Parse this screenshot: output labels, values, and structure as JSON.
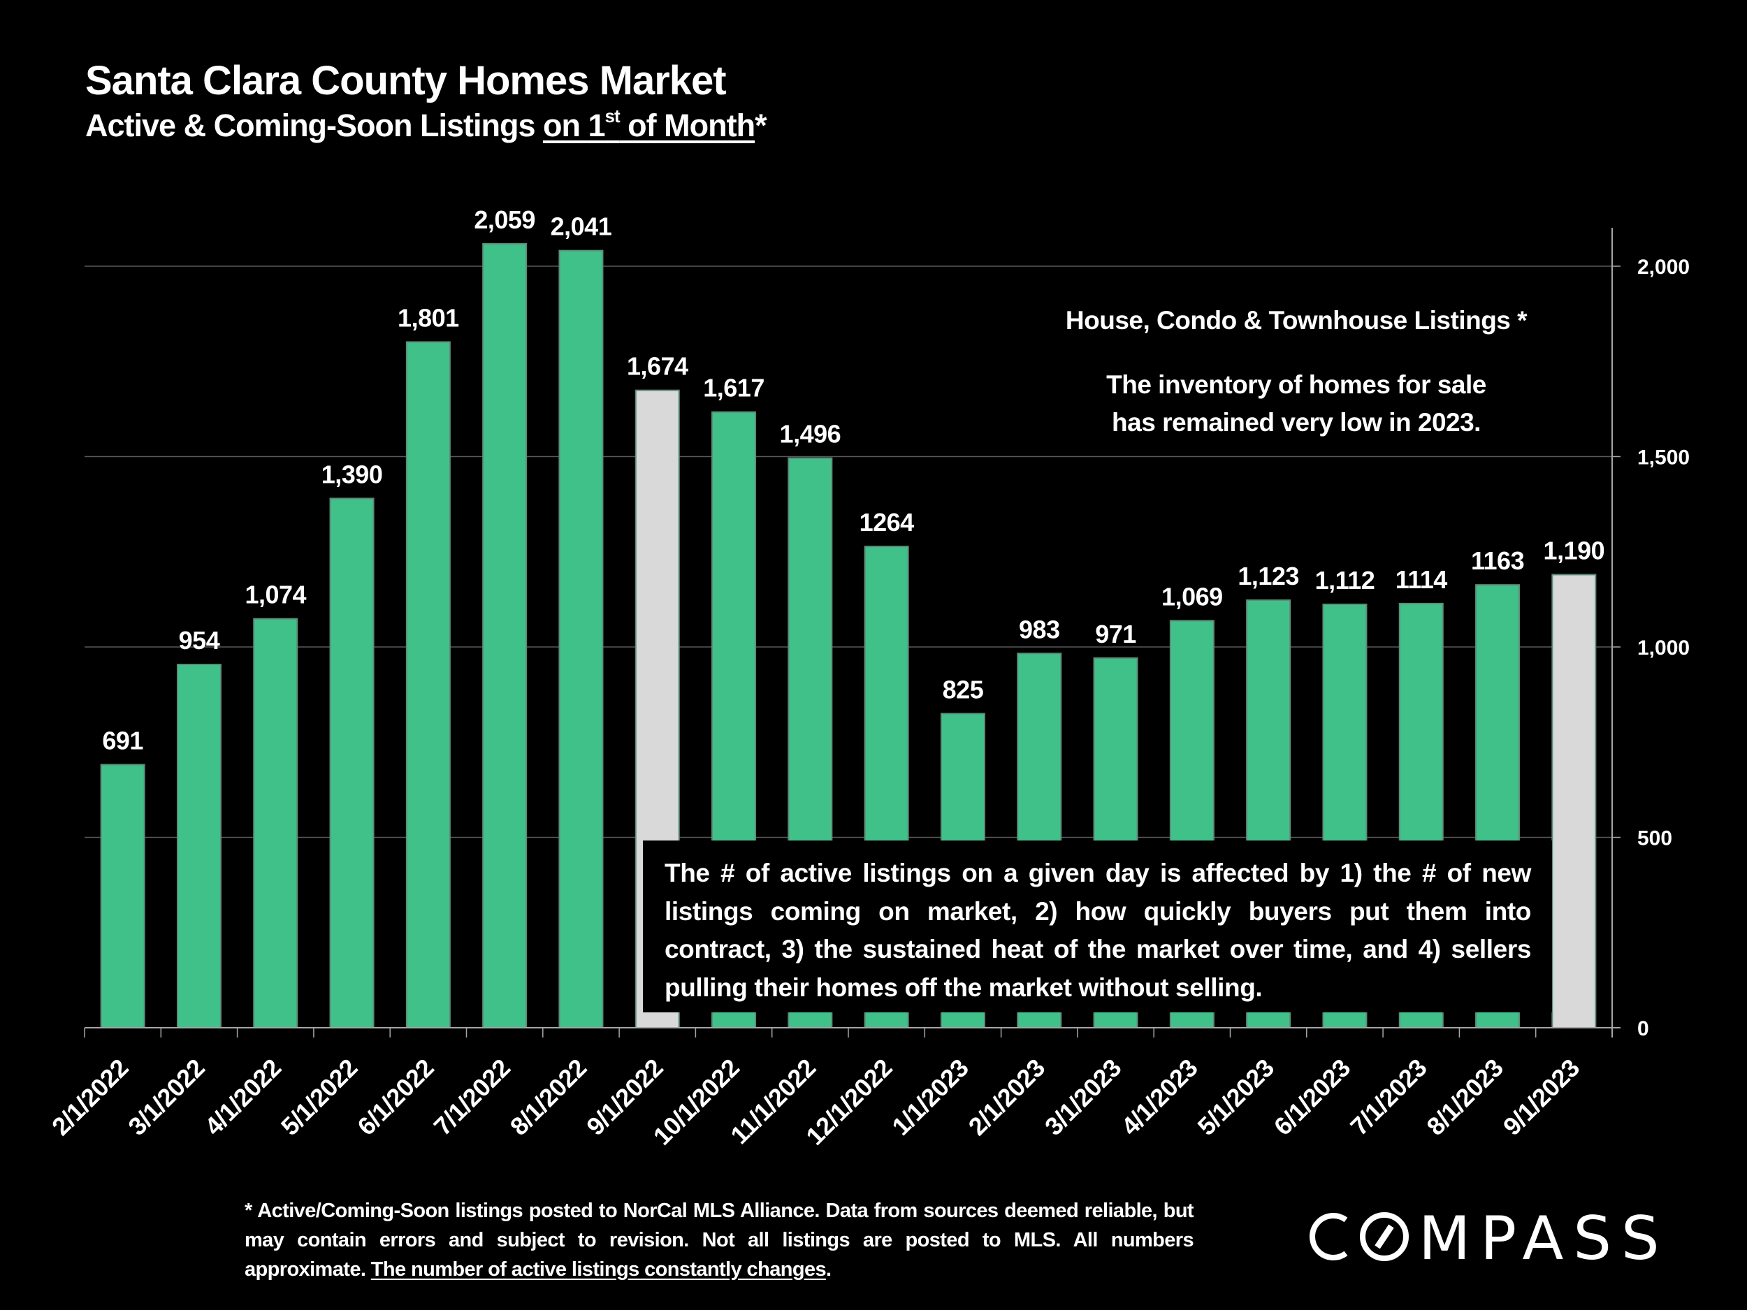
{
  "header": {
    "title": "Santa Clara County Homes Market",
    "subtitle_prefix": "Active & Coming-Soon Listings ",
    "subtitle_underlined_a": "on 1",
    "subtitle_sup": "st",
    "subtitle_underlined_b": " of Month",
    "subtitle_suffix": "*"
  },
  "annotations": {
    "legend_heading": "House, Condo & Townhouse Listings *",
    "summary_line1": "The inventory of homes for sale",
    "summary_line2": "has remained very low in 2023.",
    "explanation": "The # of active listings on a given day is affected by 1) the # of new listings coming on market, 2) how quickly buyers put them into contract, 3) the sustained heat of the market over time, and 4) sellers pulling their homes off the market without selling."
  },
  "footnote": {
    "text": "* Active/Coming-Soon listings posted to NorCal MLS Alliance.  Data from sources deemed reliable, but may contain errors and subject to revision.  Not all listings are posted to MLS. All numbers approximate. ",
    "underlined": "The number of active listings constantly changes",
    "end": "."
  },
  "brand": {
    "logo_text": "COMPASS"
  },
  "colors": {
    "background": "#000000",
    "bar_primary": "#40C18A",
    "bar_highlight": "#D9D9D9",
    "bar_edge": "#5E8C78",
    "gridline": "#595959",
    "axis": "#A6A6A6",
    "text": "#FFFFFF"
  },
  "chart_data": {
    "type": "bar",
    "title": "Santa Clara County Homes Market",
    "subtitle": "Active & Coming-Soon Listings on 1st of Month*",
    "xlabel": "",
    "ylabel": "",
    "categories": [
      "2/1/2022",
      "3/1/2022",
      "4/1/2022",
      "5/1/2022",
      "6/1/2022",
      "7/1/2022",
      "8/1/2022",
      "9/1/2022",
      "10/1/2022",
      "11/1/2022",
      "12/1/2022",
      "1/1/2023",
      "2/1/2023",
      "3/1/2023",
      "4/1/2023",
      "5/1/2023",
      "6/1/2023",
      "7/1/2023",
      "8/1/2023",
      "9/1/2023"
    ],
    "values": [
      691,
      954,
      1074,
      1390,
      1801,
      2059,
      2041,
      1674,
      1617,
      1496,
      1264,
      825,
      983,
      971,
      1069,
      1123,
      1112,
      1114,
      1163,
      1190
    ],
    "data_labels": [
      "691",
      "954",
      "1,074",
      "1,390",
      "1,801",
      "2,059",
      "2,041",
      "1,674",
      "1,617",
      "1,496",
      "1264",
      "825",
      "983",
      "971",
      "1,069",
      "1,123",
      "1,112",
      "1114",
      "1163",
      "1,190"
    ],
    "highlighted_categories": [
      "9/1/2022",
      "9/1/2023"
    ],
    "y_axis_side": "right",
    "yticks": [
      0,
      500,
      1000,
      1500,
      2000
    ],
    "ytick_labels": [
      "0",
      "500",
      "1,000",
      "1,500",
      "2,000"
    ],
    "ylim": [
      0,
      2160
    ],
    "grid": true,
    "legend": "none"
  }
}
